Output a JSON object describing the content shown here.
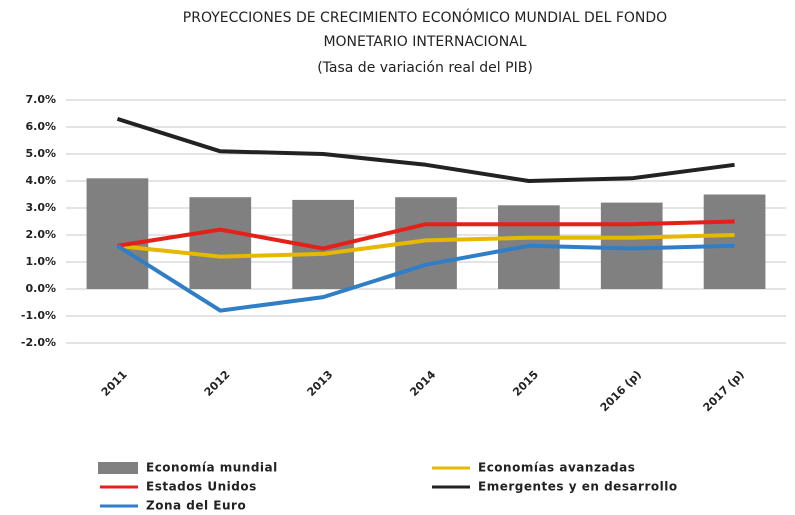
{
  "chart_data": {
    "type": "combo",
    "title": [
      "PROYECCIONES DE CRECIMIENTO ECONÓMICO MUNDIAL DEL FONDO",
      "MONETARIO INTERNACIONAL"
    ],
    "subtitle": "(Tasa de variación real del PIB)",
    "categories": [
      "2011",
      "2012",
      "2013",
      "2014",
      "2015",
      "2016 (p)",
      "2017 (p)"
    ],
    "ylim": [
      -2,
      7
    ],
    "yticks": [
      {
        "value": -2,
        "label": "-2.0%"
      },
      {
        "value": -1,
        "label": "-1.0%"
      },
      {
        "value": 0,
        "label": "0.0%"
      },
      {
        "value": 1,
        "label": "1.0%"
      },
      {
        "value": 2,
        "label": "2.0%"
      },
      {
        "value": 3,
        "label": "3.0%"
      },
      {
        "value": 4,
        "label": "4.0%"
      },
      {
        "value": 5,
        "label": "5.0%"
      },
      {
        "value": 6,
        "label": "6.0%"
      },
      {
        "value": 7,
        "label": "7.0%"
      }
    ],
    "grid": true,
    "series": [
      {
        "name": "Economía mundial",
        "type": "bar",
        "color": "#808080",
        "values": [
          4.1,
          3.4,
          3.3,
          3.4,
          3.1,
          3.2,
          3.5
        ]
      },
      {
        "name": "Economías avanzadas",
        "type": "line",
        "color": "#e6b800",
        "values": [
          1.6,
          1.2,
          1.3,
          1.8,
          1.9,
          1.9,
          2.0
        ]
      },
      {
        "name": "Estados Unidos",
        "type": "line",
        "color": "#e32119",
        "values": [
          1.6,
          2.2,
          1.5,
          2.4,
          2.4,
          2.4,
          2.5
        ]
      },
      {
        "name": "Emergentes y en desarrollo",
        "type": "line",
        "color": "#222222",
        "values": [
          6.3,
          5.1,
          5.0,
          4.6,
          4.0,
          4.1,
          4.6
        ]
      },
      {
        "name": "Zona del Euro",
        "type": "line",
        "color": "#2f7ec6",
        "values": [
          1.6,
          -0.8,
          -0.3,
          0.9,
          1.6,
          1.5,
          1.6
        ]
      }
    ]
  }
}
